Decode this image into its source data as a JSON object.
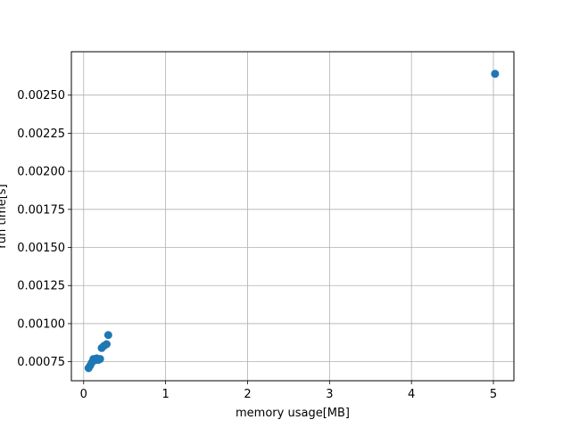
{
  "chart_data": {
    "type": "scatter",
    "title": "",
    "xlabel": "memory usage[MB]",
    "ylabel": "run time[s]",
    "xlim": [
      -0.15,
      5.25
    ],
    "ylim": [
      0.000625,
      0.002785
    ],
    "xticks": [
      0,
      1,
      2,
      3,
      4,
      5
    ],
    "xtick_labels": [
      "0",
      "1",
      "2",
      "3",
      "4",
      "5"
    ],
    "yticks": [
      0.00075,
      0.001,
      0.00125,
      0.0015,
      0.00175,
      0.002,
      0.00225,
      0.0025
    ],
    "ytick_labels": [
      "0.00075",
      "0.00100",
      "0.00125",
      "0.00150",
      "0.00175",
      "0.00200",
      "0.00225",
      "0.00250"
    ],
    "grid": true,
    "color": "#1f77b4",
    "points": [
      {
        "x": 0.06,
        "y": 0.000708
      },
      {
        "x": 0.08,
        "y": 0.000725
      },
      {
        "x": 0.1,
        "y": 0.000745
      },
      {
        "x": 0.12,
        "y": 0.000768
      },
      {
        "x": 0.14,
        "y": 0.00076
      },
      {
        "x": 0.16,
        "y": 0.000772
      },
      {
        "x": 0.18,
        "y": 0.000762
      },
      {
        "x": 0.2,
        "y": 0.000768
      },
      {
        "x": 0.22,
        "y": 0.00084
      },
      {
        "x": 0.25,
        "y": 0.000855
      },
      {
        "x": 0.28,
        "y": 0.000865
      },
      {
        "x": 0.3,
        "y": 0.000925
      },
      {
        "x": 5.02,
        "y": 0.00264
      }
    ]
  }
}
